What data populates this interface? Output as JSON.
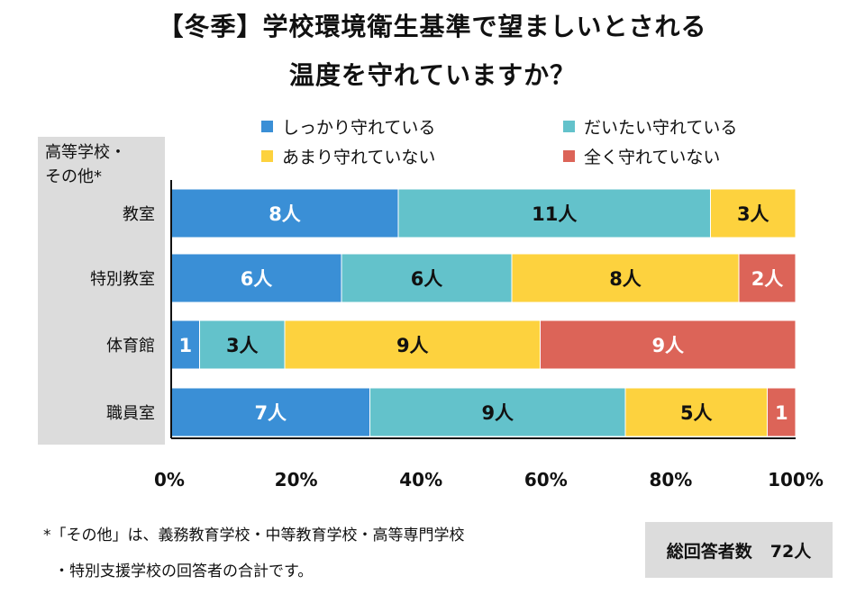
{
  "title": {
    "line1": "【冬季】学校環境衛生基準で望ましいとされる",
    "line2": "温度を守れていますか？"
  },
  "category_header": {
    "line1": "高等学校・",
    "line2": "その他*"
  },
  "footnote": {
    "line1": "*「その他」は、義務教育学校・中等教育学校・高等専門学校",
    "line2": "・特別支援学校の回答者の合計です。"
  },
  "total": {
    "label": "総回答者数",
    "value": "72人"
  },
  "chart_data": {
    "type": "bar",
    "orientation": "horizontal",
    "stacked": "percent",
    "categories": [
      "教室",
      "特別教室",
      "体育館",
      "職員室"
    ],
    "series": [
      {
        "name": "しっかり守れている",
        "color": "#3a8fd6",
        "values": [
          8,
          6,
          1,
          7
        ],
        "labels": [
          "8人",
          "6人",
          "1",
          "7人"
        ]
      },
      {
        "name": "だいたい守れている",
        "color": "#63c2cb",
        "values": [
          11,
          6,
          3,
          9
        ],
        "labels": [
          "11人",
          "6人",
          "3人",
          "9人"
        ]
      },
      {
        "name": "あまり守れていない",
        "color": "#fdd23e",
        "values": [
          3,
          8,
          9,
          5
        ],
        "labels": [
          "3人",
          "8人",
          "9人",
          "5人"
        ]
      },
      {
        "name": "全く守れていない",
        "color": "#dc6458",
        "values": [
          0,
          2,
          9,
          1
        ],
        "labels": [
          "",
          "2人",
          "9人",
          "1"
        ]
      }
    ],
    "xticks": [
      "0%",
      "20%",
      "40%",
      "60%",
      "80%",
      "100%"
    ],
    "xlim": [
      0,
      100
    ],
    "legend_position": "top"
  }
}
